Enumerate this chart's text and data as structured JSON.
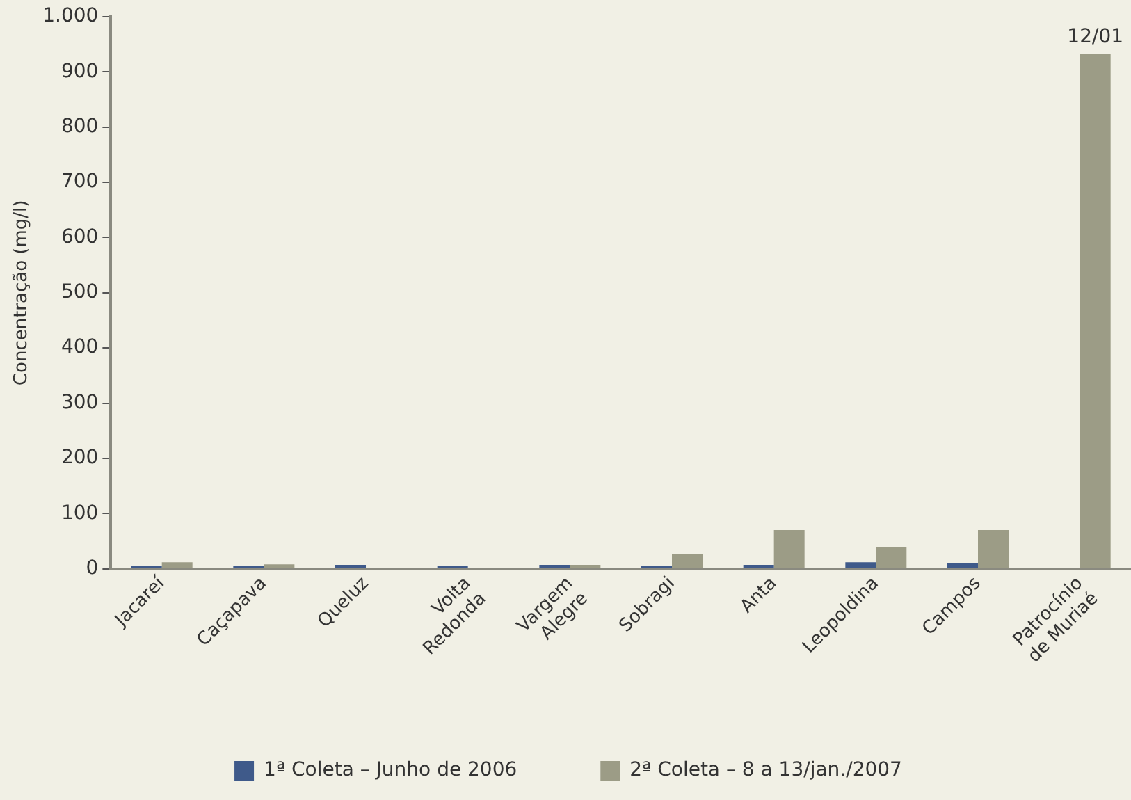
{
  "chart_data": {
    "type": "bar",
    "ylabel": "Concentração (mg/l)",
    "categories": [
      "Jacareí",
      "Caçapava",
      "Queluz",
      "Volta\nRedonda",
      "Vargem\nAlegre",
      "Sobragi",
      "Anta",
      "Leopoldina",
      "Campos",
      "Patrocínio\nde Muriaé"
    ],
    "series": [
      {
        "name": "1ª Coleta – Junho de 2006",
        "color": "#3f5a8a",
        "values": [
          5,
          5,
          7,
          5,
          7,
          5,
          7,
          12,
          10,
          null
        ]
      },
      {
        "name": "2ª Coleta – 8 a 13/jan./2007",
        "color": "#9c9c86",
        "values": [
          12,
          8,
          null,
          null,
          7,
          26,
          70,
          40,
          70,
          932
        ]
      }
    ],
    "ylim": [
      0,
      1000
    ],
    "yticks": [
      0,
      100,
      200,
      300,
      400,
      500,
      600,
      700,
      800,
      900,
      {
        "value": 1000,
        "label": "1.000"
      }
    ],
    "grid": false,
    "legend": "bottom",
    "annotations": [
      {
        "text": "12/01",
        "x": "Patrocínio\nde Muriaé",
        "y": 932
      }
    ]
  }
}
